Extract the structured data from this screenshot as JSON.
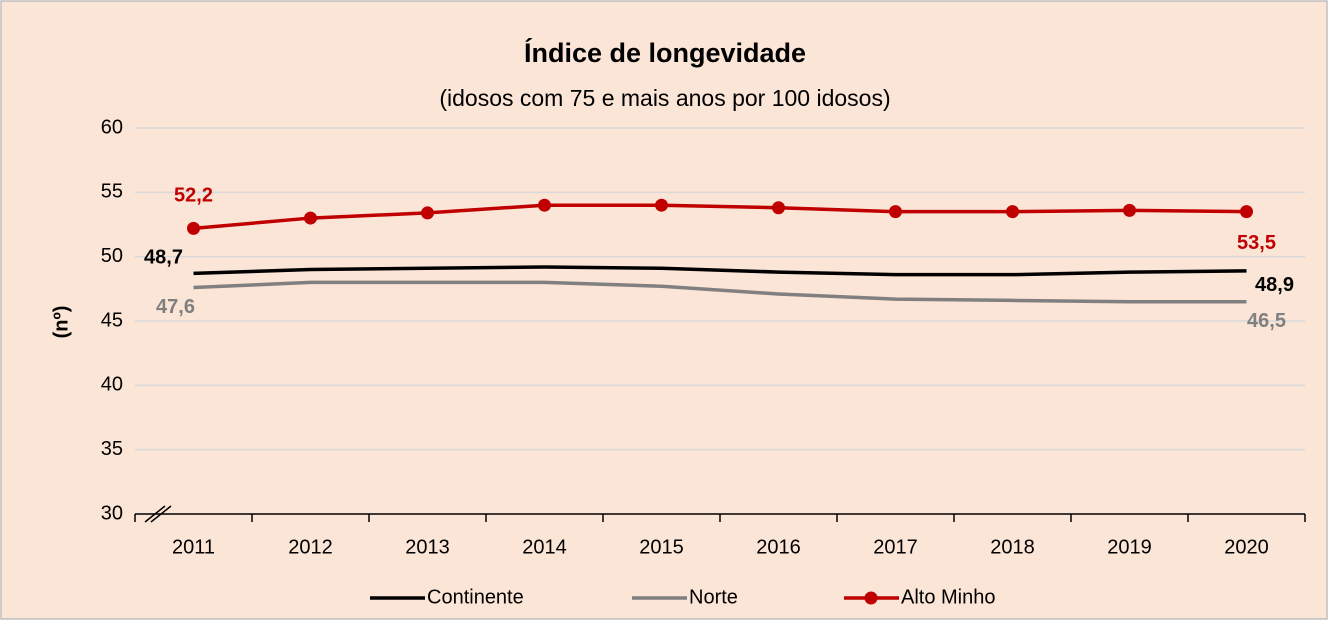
{
  "chart_data": {
    "type": "line",
    "title": "Índice de longevidade",
    "subtitle": "(idosos com 75 e mais anos por 100 idosos)",
    "y_label": "(nº)",
    "categories": [
      "2011",
      "2012",
      "2013",
      "2014",
      "2015",
      "2016",
      "2017",
      "2018",
      "2019",
      "2020"
    ],
    "series": [
      {
        "name": "Continente",
        "color": "#000000",
        "markers": false,
        "values": [
          48.7,
          49.0,
          49.1,
          49.2,
          49.1,
          48.8,
          48.6,
          48.6,
          48.8,
          48.9
        ],
        "value_labels": [
          "48,7",
          null,
          null,
          null,
          null,
          null,
          null,
          null,
          null,
          "48,9"
        ]
      },
      {
        "name": "Norte",
        "color": "#808080",
        "markers": false,
        "values": [
          47.6,
          48.0,
          48.0,
          48.0,
          47.7,
          47.1,
          46.7,
          46.6,
          46.5,
          46.5
        ],
        "value_labels": [
          "47,6",
          null,
          null,
          null,
          null,
          null,
          null,
          null,
          null,
          "46,5"
        ]
      },
      {
        "name": "Alto Minho",
        "color": "#c00000",
        "markers": true,
        "values": [
          52.2,
          53.0,
          53.4,
          54.0,
          54.0,
          53.8,
          53.5,
          53.5,
          53.6,
          53.5
        ],
        "value_labels": [
          "52,2",
          null,
          null,
          null,
          null,
          null,
          null,
          null,
          null,
          "53,5"
        ]
      }
    ],
    "ylim": [
      30,
      60
    ],
    "yticks": [
      30,
      35,
      40,
      45,
      50,
      55,
      60
    ],
    "grid": true,
    "legend": "bottom"
  }
}
